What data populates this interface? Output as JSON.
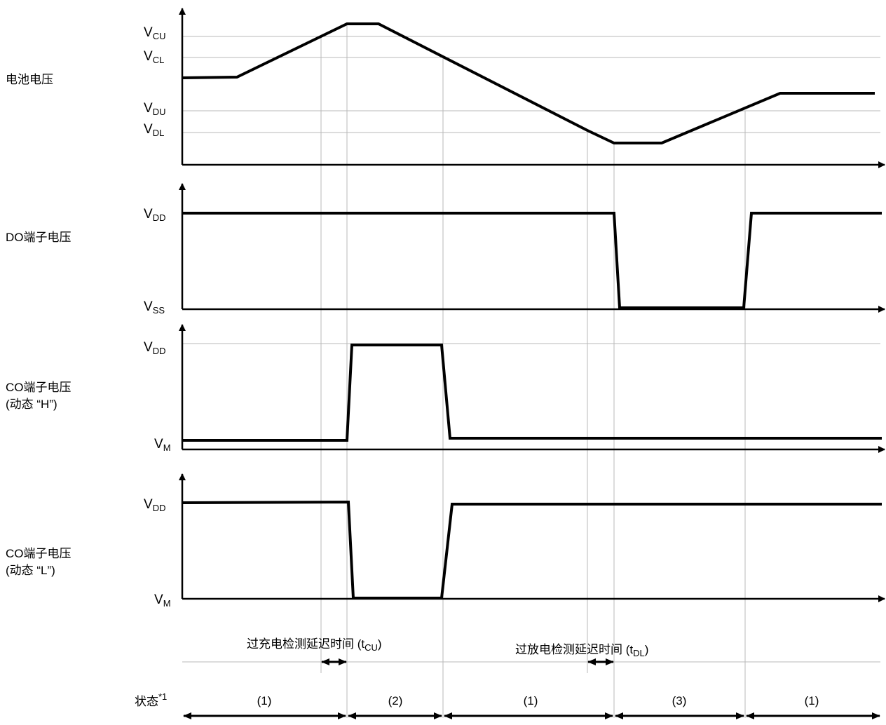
{
  "row_labels": {
    "battery": "电池电压",
    "do": "DO端子电压",
    "co_h_line1": "CO端子电压",
    "co_h_line2": "(动态 “H”)",
    "co_l_line1": "CO端子电压",
    "co_l_line2": "(动态 “L”)"
  },
  "voltage_levels": {
    "vcu": {
      "main": "V",
      "sub": "CU"
    },
    "vcl": {
      "main": "V",
      "sub": "CL"
    },
    "vdu": {
      "main": "V",
      "sub": "DU"
    },
    "vdl": {
      "main": "V",
      "sub": "DL"
    },
    "vdd": {
      "main": "V",
      "sub": "DD"
    },
    "vss": {
      "main": "V",
      "sub": "SS"
    },
    "vm": {
      "main": "V",
      "sub": "M"
    }
  },
  "delays": {
    "overcharge": {
      "text": "过充电检测延迟时间 (t",
      "sub": "CU",
      "close": ")"
    },
    "overdischarge": {
      "text": "过放电检测延迟时间 (t",
      "sub": "DL",
      "close": ")"
    }
  },
  "state_label": {
    "text": "状态",
    "sup": "*1"
  },
  "states": [
    "(1)",
    "(2)",
    "(1)",
    "(3)",
    "(1)"
  ]
}
